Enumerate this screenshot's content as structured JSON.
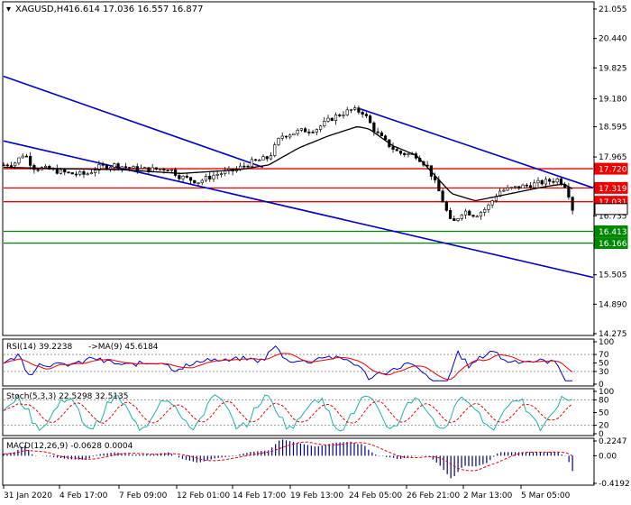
{
  "header": {
    "title": "XAGUSD,H4",
    "ohlc": "16.614 17.036 16.557 16.877"
  },
  "colors": {
    "background": "#ffffff",
    "channel": "#0000cc",
    "resistance": "#ee0000",
    "support": "#008800",
    "ma": "#000000",
    "candle": "#000000",
    "rsi": "#0000cc",
    "rsi_ma": "#ee0000",
    "stoch_main": "#20b2aa",
    "stoch_signal": "#ee0000",
    "macd_hist": "#000080",
    "macd_signal": "#ee0000"
  },
  "main_axis": {
    "ticks": [
      "21.055",
      "20.440",
      "19.825",
      "19.180",
      "18.595",
      "17.965",
      "17.350",
      "16.735",
      "16.120",
      "15.505",
      "14.890",
      "14.275"
    ]
  },
  "price_tags": [
    {
      "label": "17.720",
      "value": 17.72,
      "color": "#ee0000"
    },
    {
      "label": "17.319",
      "value": 17.319,
      "color": "#ee0000"
    },
    {
      "label": "17.031",
      "value": 17.031,
      "color": "#ee0000"
    },
    {
      "label": "16.877",
      "value": 16.877,
      "color": "#ffffff",
      "text_color": "#000000",
      "border": "#000000"
    },
    {
      "label": "16.413",
      "value": 16.413,
      "color": "#008800"
    },
    {
      "label": "16.166",
      "value": 16.166,
      "color": "#008800"
    }
  ],
  "rsi": {
    "label": "RSI(14) 39.2238",
    "ma_label": "->MA(9) 45.6184",
    "ticks": [
      "100",
      "70",
      "50",
      "30",
      "0"
    ]
  },
  "stoch": {
    "label": "Stoch(5,3,3) 22.5298 32.5135",
    "ticks": [
      "100",
      "80",
      "50",
      "20",
      "0"
    ]
  },
  "macd": {
    "label": "MACD(12,26,9) -0.0628 0.0004",
    "ticks": [
      "0.2247",
      "0.00",
      "-0.4192"
    ]
  },
  "time_axis": {
    "labels": [
      "31 Jan 2020",
      "4 Feb 17:00",
      "7 Feb 09:00",
      "12 Feb 01:00",
      "14 Feb 17:00",
      "19 Feb 13:00",
      "24 Feb 05:00",
      "26 Feb 21:00",
      "2 Mar 13:00",
      "5 Mar 05:00"
    ]
  },
  "chart_data": {
    "type": "candlestick",
    "symbol": "XAGUSD",
    "timeframe": "H4",
    "ylim": [
      14.275,
      21.055
    ],
    "close_path": [
      {
        "x": 0,
        "y": 17.8
      },
      {
        "x": 0.02,
        "y": 17.85
      },
      {
        "x": 0.035,
        "y": 18.05
      },
      {
        "x": 0.05,
        "y": 17.75
      },
      {
        "x": 0.08,
        "y": 17.7
      },
      {
        "x": 0.11,
        "y": 17.62
      },
      {
        "x": 0.14,
        "y": 17.6
      },
      {
        "x": 0.16,
        "y": 17.75
      },
      {
        "x": 0.19,
        "y": 17.8
      },
      {
        "x": 0.22,
        "y": 17.72
      },
      {
        "x": 0.25,
        "y": 17.7
      },
      {
        "x": 0.28,
        "y": 17.73
      },
      {
        "x": 0.3,
        "y": 17.55
      },
      {
        "x": 0.33,
        "y": 17.45
      },
      {
        "x": 0.36,
        "y": 17.6
      },
      {
        "x": 0.39,
        "y": 17.68
      },
      {
        "x": 0.42,
        "y": 17.85
      },
      {
        "x": 0.45,
        "y": 17.95
      },
      {
        "x": 0.47,
        "y": 18.4
      },
      {
        "x": 0.5,
        "y": 18.5
      },
      {
        "x": 0.53,
        "y": 18.55
      },
      {
        "x": 0.56,
        "y": 18.8
      },
      {
        "x": 0.59,
        "y": 18.95
      },
      {
        "x": 0.61,
        "y": 18.9
      },
      {
        "x": 0.63,
        "y": 18.5
      },
      {
        "x": 0.65,
        "y": 18.25
      },
      {
        "x": 0.67,
        "y": 18.05
      },
      {
        "x": 0.7,
        "y": 18.0
      },
      {
        "x": 0.72,
        "y": 17.75
      },
      {
        "x": 0.74,
        "y": 17.2
      },
      {
        "x": 0.76,
        "y": 16.55
      },
      {
        "x": 0.78,
        "y": 16.85
      },
      {
        "x": 0.8,
        "y": 16.75
      },
      {
        "x": 0.82,
        "y": 16.9
      },
      {
        "x": 0.84,
        "y": 17.25
      },
      {
        "x": 0.86,
        "y": 17.3
      },
      {
        "x": 0.88,
        "y": 17.35
      },
      {
        "x": 0.9,
        "y": 17.4
      },
      {
        "x": 0.92,
        "y": 17.45
      },
      {
        "x": 0.94,
        "y": 17.5
      },
      {
        "x": 0.955,
        "y": 17.35
      },
      {
        "x": 0.965,
        "y": 16.88
      }
    ],
    "ma_path": [
      {
        "x": 0,
        "y": 17.75
      },
      {
        "x": 0.1,
        "y": 17.72
      },
      {
        "x": 0.2,
        "y": 17.7
      },
      {
        "x": 0.3,
        "y": 17.62
      },
      {
        "x": 0.4,
        "y": 17.7
      },
      {
        "x": 0.45,
        "y": 17.8
      },
      {
        "x": 0.5,
        "y": 18.15
      },
      {
        "x": 0.55,
        "y": 18.4
      },
      {
        "x": 0.6,
        "y": 18.6
      },
      {
        "x": 0.62,
        "y": 18.55
      },
      {
        "x": 0.66,
        "y": 18.2
      },
      {
        "x": 0.7,
        "y": 18.0
      },
      {
        "x": 0.73,
        "y": 17.6
      },
      {
        "x": 0.76,
        "y": 17.2
      },
      {
        "x": 0.8,
        "y": 17.05
      },
      {
        "x": 0.84,
        "y": 17.15
      },
      {
        "x": 0.88,
        "y": 17.25
      },
      {
        "x": 0.92,
        "y": 17.35
      },
      {
        "x": 0.95,
        "y": 17.4
      },
      {
        "x": 0.965,
        "y": 17.3
      }
    ],
    "channel_upper": [
      {
        "x": 0.605,
        "y": 18.97
      },
      {
        "x": 1.0,
        "y": 17.32
      }
    ],
    "channel_lower_top": [
      {
        "x": 0,
        "y": 19.65
      },
      {
        "x": 0.44,
        "y": 17.75
      }
    ],
    "channel_lower": [
      {
        "x": 0,
        "y": 18.3
      },
      {
        "x": 1.0,
        "y": 15.45
      }
    ],
    "horizontal_levels": [
      17.72,
      17.319,
      17.031,
      16.413,
      16.166
    ]
  }
}
